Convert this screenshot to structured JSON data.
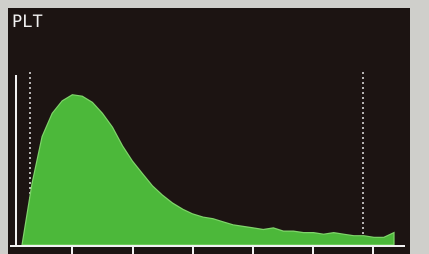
{
  "chart_data": {
    "type": "area",
    "title": "PLT",
    "x": [
      0,
      1,
      2,
      3,
      4,
      5,
      6,
      7,
      8,
      9,
      10,
      11,
      12,
      13,
      14,
      15,
      16,
      17,
      18,
      19,
      20,
      21,
      22,
      23,
      24,
      25,
      26,
      27,
      28,
      29,
      30,
      31,
      32,
      33,
      34,
      35,
      36,
      37
    ],
    "values": [
      0,
      40,
      70,
      85,
      93,
      97,
      96,
      92,
      85,
      76,
      64,
      54,
      46,
      38,
      32,
      27,
      23,
      20,
      18,
      17,
      15,
      13,
      12,
      11,
      10,
      11,
      9,
      9,
      8,
      8,
      7,
      8,
      7,
      6,
      6,
      5,
      5,
      8
    ],
    "color": "#4cb83a",
    "xlim": [
      0,
      37
    ],
    "ylim": [
      0,
      100
    ]
  }
}
